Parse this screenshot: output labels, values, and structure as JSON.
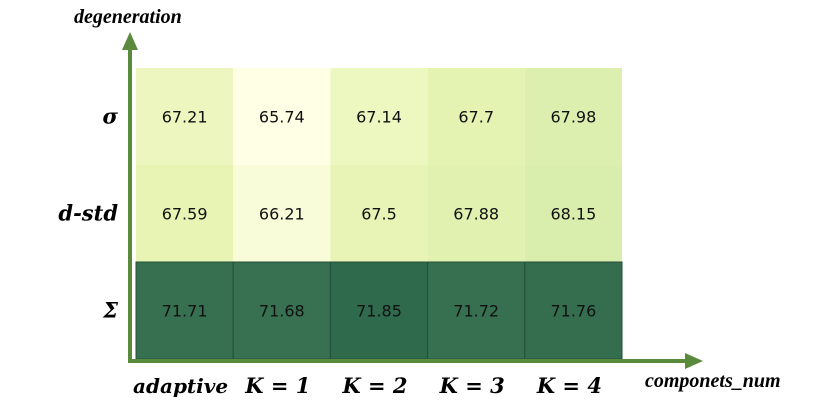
{
  "chart_data": {
    "type": "heatmap",
    "xlabel": "componets_num",
    "ylabel": "degeneration",
    "x_categories": [
      "adaptive",
      "K = 1",
      "K = 2",
      "K = 3",
      "K = 4"
    ],
    "y_categories": [
      "σ",
      "d-std",
      "Σ"
    ],
    "values": [
      [
        "67.21",
        "65.74",
        "67.14",
        "67.7",
        "67.98"
      ],
      [
        "67.59",
        "66.21",
        "67.5",
        "67.88",
        "68.15"
      ],
      [
        "71.71",
        "71.68",
        "71.85",
        "71.72",
        "71.76"
      ]
    ],
    "colormap": {
      "low": "#ffffe5",
      "mid": "#c2e3a0",
      "high": "#2f6a4c"
    },
    "axis_color": "#5a8a3c"
  }
}
